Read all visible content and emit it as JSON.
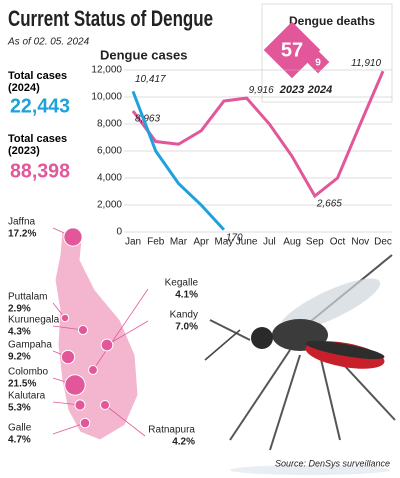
{
  "header": {
    "title": "Current Status of Dengue",
    "date": "As of 02. 05. 2024"
  },
  "totals": [
    {
      "label": "Total cases (2024)",
      "value": "22,443"
    },
    {
      "label": "Total cases (2023)",
      "value": "88,398"
    }
  ],
  "deaths": {
    "title": "Dengue deaths",
    "items": [
      {
        "year": "2023",
        "value": "57"
      },
      {
        "year": "2024",
        "value": "9"
      }
    ]
  },
  "chart_data": {
    "type": "line",
    "title": "Dengue cases",
    "categories": [
      "Jan",
      "Feb",
      "Mar",
      "Apr",
      "May",
      "June",
      "Jul",
      "Aug",
      "Sep",
      "Oct",
      "Nov",
      "Dec"
    ],
    "series": [
      {
        "color": "#e2569a",
        "values": [
          8963,
          6700,
          6500,
          7500,
          9700,
          9916,
          8000,
          5600,
          2665,
          4000,
          8000,
          11910
        ],
        "value_labels": [
          "8,963",
          null,
          null,
          null,
          null,
          "9,916",
          null,
          null,
          "2,665",
          null,
          null,
          "11,910"
        ]
      },
      {
        "color": "#1ea1dc",
        "values": [
          10417,
          6000,
          3600,
          2000,
          170,
          null,
          null,
          null,
          null,
          null,
          null,
          null
        ],
        "value_labels": [
          "10,417",
          null,
          null,
          null,
          "170",
          null,
          null,
          null,
          null,
          null,
          null,
          null
        ]
      }
    ],
    "ylim": [
      0,
      12000
    ],
    "yticks": [
      0,
      {
        "value": 2000,
        "label": "2,000"
      },
      {
        "value": 4000,
        "label": "4,000"
      },
      {
        "value": 6000,
        "label": "6,000"
      },
      {
        "value": 8000,
        "label": "8,000"
      },
      {
        "value": 10000,
        "label": "10,000"
      },
      {
        "value": 12000,
        "label": "12,000"
      }
    ]
  },
  "districts": [
    {
      "name": "Jaffna",
      "share": 17.2,
      "share_label": "17.2%"
    },
    {
      "name": "Puttalam",
      "share": 2.9,
      "share_label": "2.9%"
    },
    {
      "name": "Kurunegala",
      "share": 4.3,
      "share_label": "4.3%"
    },
    {
      "name": "Gampaha",
      "share": 9.2,
      "share_label": "9.2%"
    },
    {
      "name": "Colombo",
      "share": 21.5,
      "share_label": "21.5%"
    },
    {
      "name": "Kalutara",
      "share": 5.3,
      "share_label": "5.3%"
    },
    {
      "name": "Galle",
      "share": 4.7,
      "share_label": "4.7%"
    },
    {
      "name": "Kegalle",
      "share": 4.1,
      "share_label": "4.1%"
    },
    {
      "name": "Kandy",
      "share": 7.0,
      "share_label": "7.0%"
    },
    {
      "name": "Ratnapura",
      "share": 4.2,
      "share_label": "4.2%"
    }
  ],
  "source": "Source: DenSys surveillance"
}
